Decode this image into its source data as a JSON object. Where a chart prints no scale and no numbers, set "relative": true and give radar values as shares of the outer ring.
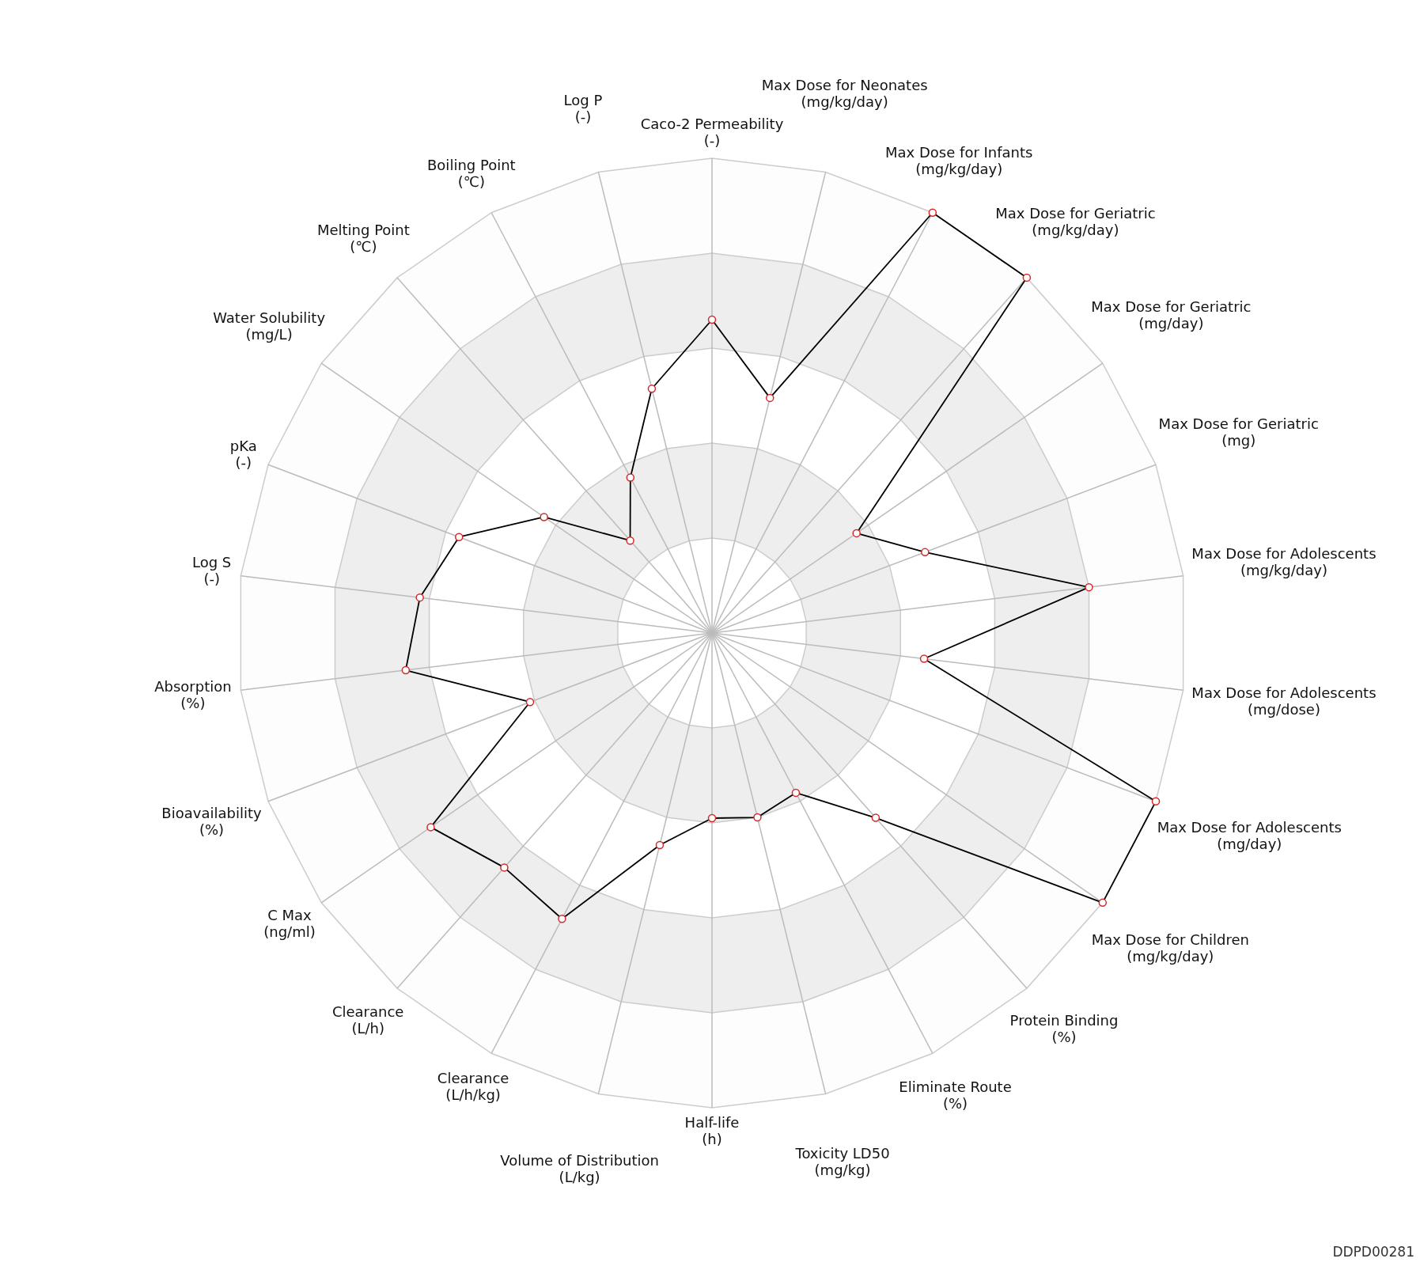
{
  "chart_data": {
    "type": "radar",
    "relative": true,
    "grid": true,
    "legend": false,
    "marker": "circle",
    "categories": [
      "Caco-2 Permeability\n(-)",
      "Max Dose for Neonates\n(mg/kg/day)",
      "Max Dose for Infants\n(mg/kg/day)",
      "Max Dose for Geriatric\n(mg/kg/day)",
      "Max Dose for Geriatric\n(mg/day)",
      "Max Dose for Geriatric\n(mg)",
      "Max Dose for Adolescents\n(mg/kg/day)",
      "Max Dose for Adolescents\n(mg/dose)",
      "Max Dose for Adolescents\n(mg/day)",
      "Max Dose for Children\n(mg/kg/day)",
      "Protein Binding\n(%)",
      "Eliminate Route\n(%)",
      "Toxicity LD50\n(mg/kg)",
      "Half-life\n(h)",
      "Volume of Distribution\n(L/kg)",
      "Clearance\n(L/h/kg)",
      "Clearance\n(L/h)",
      "C Max\n(ng/ml)",
      "Bioavailability\n(%)",
      "Absorption\n(%)",
      "Log S\n(-)",
      "pKa\n(-)",
      "Water Solubility\n(mg/L)",
      "Melting Point\n(℃)",
      "Boiling Point\n(℃)",
      "Log P\n(-)"
    ],
    "series": [
      {
        "color": "#000000",
        "values": [
          0.66,
          0.51,
          1,
          1,
          0.37,
          0.48,
          0.8,
          0.45,
          1,
          1,
          0.52,
          0.38,
          0.4,
          0.39,
          0.46,
          0.68,
          0.66,
          0.72,
          0.41,
          0.65,
          0.62,
          0.57,
          0.43,
          0.26,
          0.37,
          0.53
        ]
      }
    ],
    "annotations": [
      "DDPD00281"
    ]
  }
}
